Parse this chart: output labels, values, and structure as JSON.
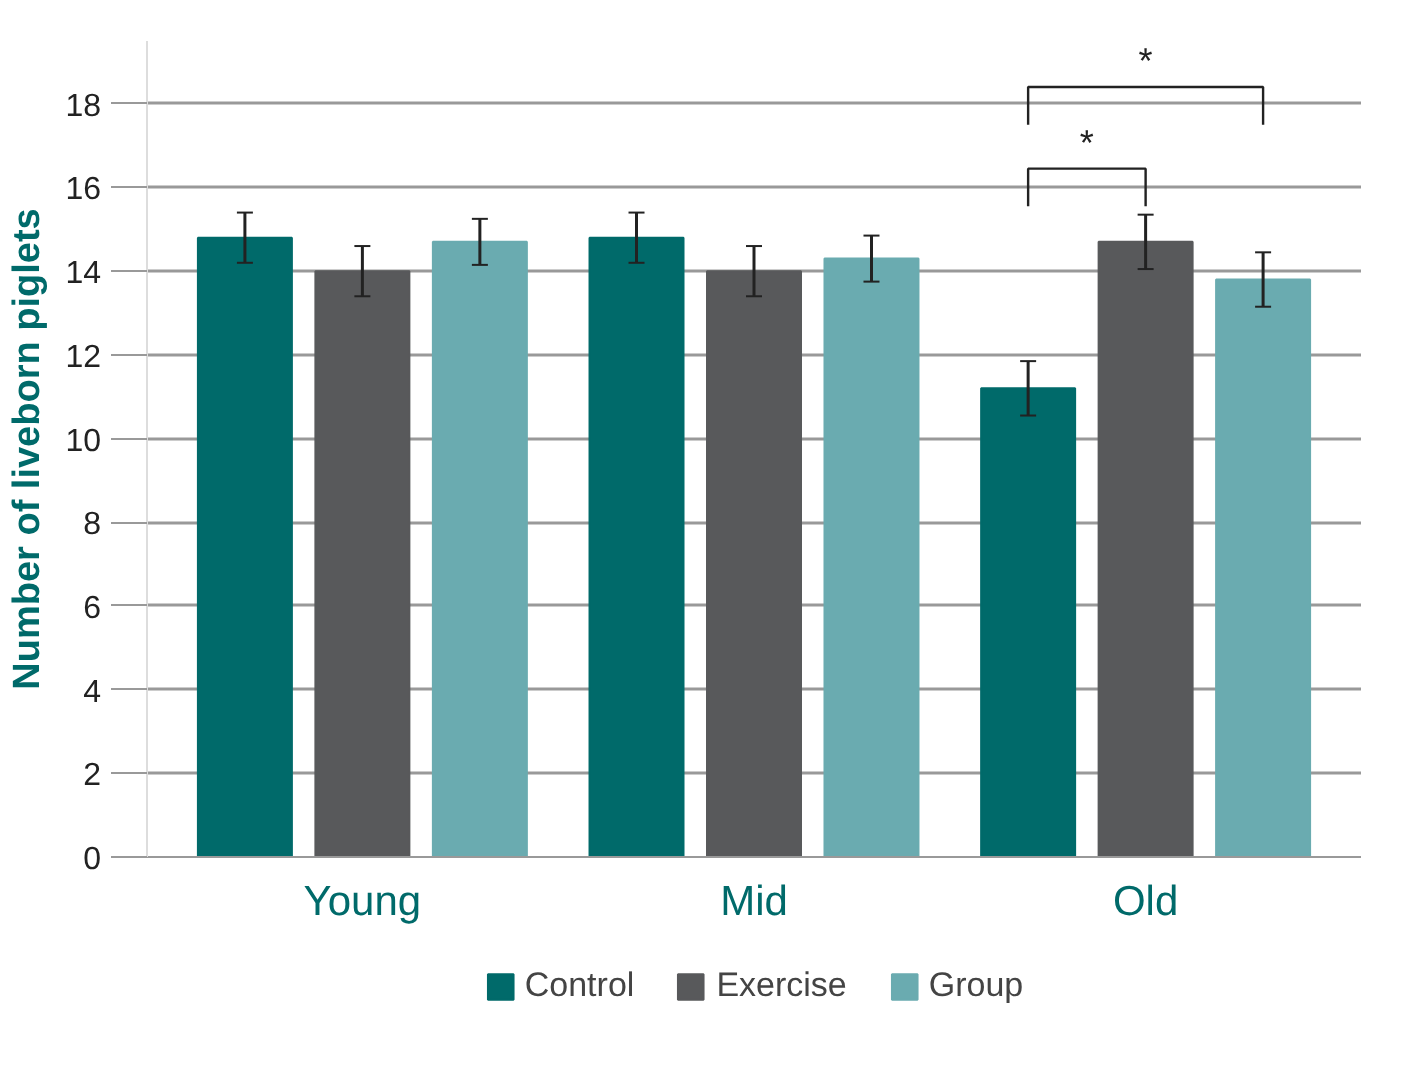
{
  "chart_data": {
    "type": "bar",
    "ylabel": "Number of liveborn piglets",
    "categories": [
      "Young",
      "Mid",
      "Old"
    ],
    "series": [
      {
        "name": "Control",
        "color": "#006a6a",
        "values": [
          14.8,
          14.8,
          11.2
        ],
        "errors": [
          0.6,
          0.6,
          0.65
        ]
      },
      {
        "name": "Exercise",
        "color": "#58595b",
        "values": [
          14.0,
          14.0,
          14.7
        ],
        "errors": [
          0.6,
          0.6,
          0.65
        ]
      },
      {
        "name": "Group",
        "color": "#6aabb0",
        "values": [
          14.7,
          14.3,
          13.8
        ],
        "errors": [
          0.55,
          0.55,
          0.65
        ]
      }
    ],
    "ylim": [
      0,
      19.5
    ],
    "yticks": [
      0,
      2,
      4,
      6,
      8,
      10,
      12,
      14,
      16,
      18
    ],
    "grid": "y",
    "legend": "bottom",
    "annotations": [
      "*",
      "*"
    ]
  }
}
